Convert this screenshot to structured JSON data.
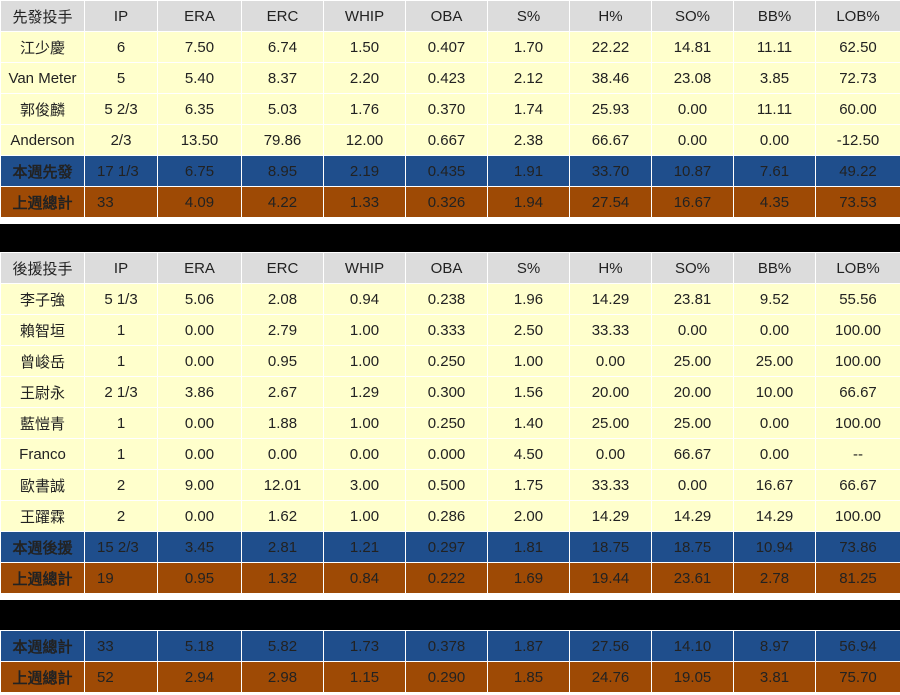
{
  "columns": [
    "IP",
    "ERA",
    "ERC",
    "WHIP",
    "OBA",
    "S%",
    "H%",
    "SO%",
    "BB%",
    "LOB%"
  ],
  "starters": {
    "header_label": "先發投手",
    "rows": [
      {
        "name": "江少慶",
        "values": [
          "6",
          "7.50",
          "6.74",
          "1.50",
          "0.407",
          "1.70",
          "22.22",
          "14.81",
          "11.11",
          "62.50"
        ]
      },
      {
        "name": "Van Meter",
        "values": [
          "5",
          "5.40",
          "8.37",
          "2.20",
          "0.423",
          "2.12",
          "38.46",
          "23.08",
          "3.85",
          "72.73"
        ]
      },
      {
        "name": "郭俊麟",
        "values": [
          "5 2/3",
          "6.35",
          "5.03",
          "1.76",
          "0.370",
          "1.74",
          "25.93",
          "0.00",
          "11.11",
          "60.00"
        ]
      },
      {
        "name": "Anderson",
        "values": [
          "2/3",
          "13.50",
          "79.86",
          "12.00",
          "0.667",
          "2.38",
          "66.67",
          "0.00",
          "0.00",
          "-12.50"
        ]
      }
    ],
    "this_week": {
      "label": "本週先發",
      "values": [
        "17 1/3",
        "6.75",
        "8.95",
        "2.19",
        "0.435",
        "1.91",
        "33.70",
        "10.87",
        "7.61",
        "49.22"
      ]
    },
    "last_week": {
      "label": "上週總計",
      "values": [
        "33",
        "4.09",
        "4.22",
        "1.33",
        "0.326",
        "1.94",
        "27.54",
        "16.67",
        "4.35",
        "73.53"
      ]
    }
  },
  "relievers": {
    "header_label": "後援投手",
    "rows": [
      {
        "name": "李子強",
        "values": [
          "5 1/3",
          "5.06",
          "2.08",
          "0.94",
          "0.238",
          "1.96",
          "14.29",
          "23.81",
          "9.52",
          "55.56"
        ]
      },
      {
        "name": "賴智垣",
        "values": [
          "1",
          "0.00",
          "2.79",
          "1.00",
          "0.333",
          "2.50",
          "33.33",
          "0.00",
          "0.00",
          "100.00"
        ]
      },
      {
        "name": "曾峻岳",
        "values": [
          "1",
          "0.00",
          "0.95",
          "1.00",
          "0.250",
          "1.00",
          "0.00",
          "25.00",
          "25.00",
          "100.00"
        ]
      },
      {
        "name": "王尉永",
        "values": [
          "2 1/3",
          "3.86",
          "2.67",
          "1.29",
          "0.300",
          "1.56",
          "20.00",
          "20.00",
          "10.00",
          "66.67"
        ]
      },
      {
        "name": "藍愷青",
        "values": [
          "1",
          "0.00",
          "1.88",
          "1.00",
          "0.250",
          "1.40",
          "25.00",
          "25.00",
          "0.00",
          "100.00"
        ]
      },
      {
        "name": "Franco",
        "values": [
          "1",
          "0.00",
          "0.00",
          "0.00",
          "0.000",
          "4.50",
          "0.00",
          "66.67",
          "0.00",
          "--"
        ]
      },
      {
        "name": "歐書誠",
        "values": [
          "2",
          "9.00",
          "12.01",
          "3.00",
          "0.500",
          "1.75",
          "33.33",
          "0.00",
          "16.67",
          "66.67"
        ]
      },
      {
        "name": "王躍霖",
        "values": [
          "2",
          "0.00",
          "1.62",
          "1.00",
          "0.286",
          "2.00",
          "14.29",
          "14.29",
          "14.29",
          "100.00"
        ]
      }
    ],
    "this_week": {
      "label": "本週後援",
      "values": [
        "15 2/3",
        "3.45",
        "2.81",
        "1.21",
        "0.297",
        "1.81",
        "18.75",
        "18.75",
        "10.94",
        "73.86"
      ]
    },
    "last_week": {
      "label": "上週總計",
      "values": [
        "19",
        "0.95",
        "1.32",
        "0.84",
        "0.222",
        "1.69",
        "19.44",
        "23.61",
        "2.78",
        "81.25"
      ]
    }
  },
  "totals": {
    "this_week": {
      "label": "本週總計",
      "values": [
        "33",
        "5.18",
        "5.82",
        "1.73",
        "0.378",
        "1.87",
        "27.56",
        "14.10",
        "8.97",
        "56.94"
      ]
    },
    "last_week": {
      "label": "上週總計",
      "values": [
        "52",
        "2.94",
        "2.98",
        "1.15",
        "0.290",
        "1.85",
        "24.76",
        "19.05",
        "3.81",
        "75.70"
      ]
    }
  },
  "colors": {
    "header_bg": "#dcdcdc",
    "row_bg": "#ffffcc",
    "this_week_bg": "#1f4e8c",
    "last_week_bg": "#9e4a05",
    "separator": "#000000"
  }
}
